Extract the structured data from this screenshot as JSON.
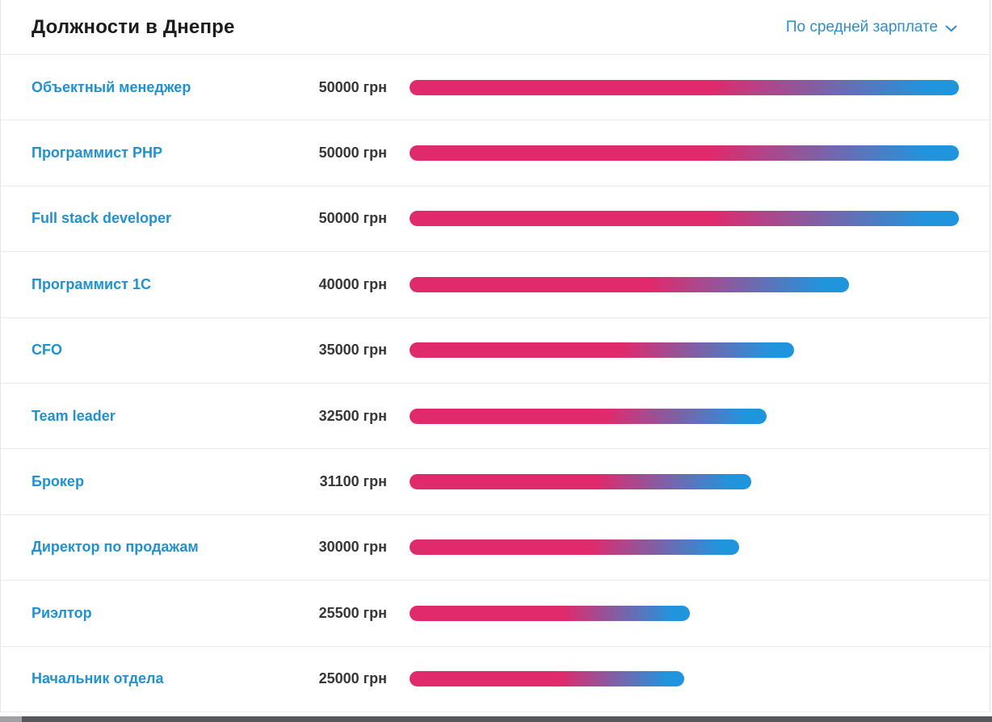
{
  "header": {
    "title": "Должности в Днепре",
    "sort_label": "По средней зарплате"
  },
  "unit": "грн",
  "colors": {
    "link_blue": "#2191d0",
    "sort_blue": "#2e8ecd",
    "bar_pink": "#e02a6c",
    "bar_blue": "#2095de",
    "salary_text": "#363636",
    "divider": "#e9ebec"
  },
  "chart_data": {
    "type": "bar",
    "orientation": "horizontal",
    "title": "Должности в Днепре",
    "sort_mode": "По средней зарплате",
    "categories": [
      "Объектный менеджер",
      "Программист PHP",
      "Full stack developer",
      "Программист 1С",
      "CFO",
      "Team leader",
      "Брокер",
      "Директор по продажам",
      "Риэлтор",
      "Начальник отдела"
    ],
    "values": [
      50000,
      50000,
      50000,
      40000,
      35000,
      32500,
      31100,
      30000,
      25500,
      25000
    ],
    "value_labels": [
      "50000 грн",
      "50000 грн",
      "50000 грн",
      "40000 грн",
      "35000 грн",
      "32500 грн",
      "31100 грн",
      "30000 грн",
      "25500 грн",
      "25000 грн"
    ],
    "xlim": [
      0,
      50000
    ],
    "value_suffix": " грн",
    "bar_gradient": [
      "#e02a6c",
      "#2095de"
    ],
    "grid": false,
    "legend": false
  }
}
